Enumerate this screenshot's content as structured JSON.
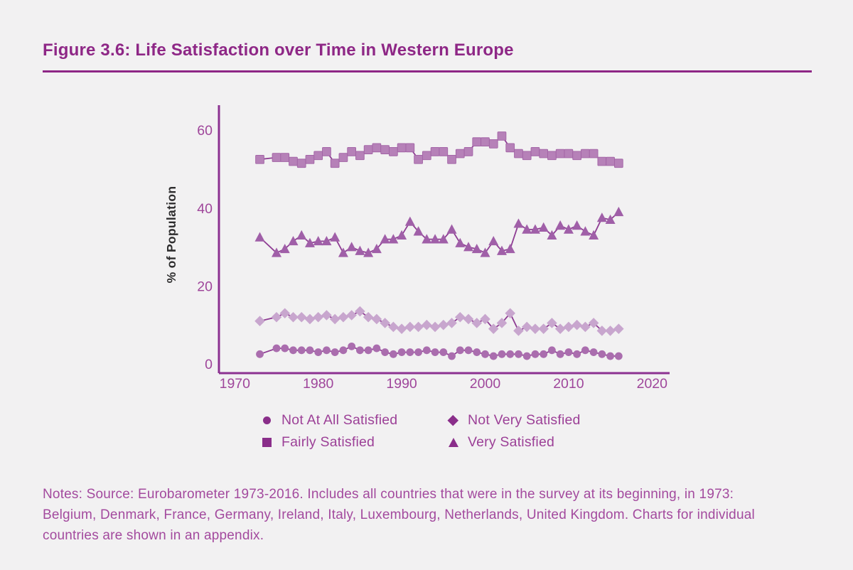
{
  "page": {
    "background": "#f2f1f2"
  },
  "figure": {
    "title": "Figure 3.6: Life Satisfaction over Time in Western Europe",
    "notes_lines": [
      "Notes: Source: Eurobarometer 1973-2016. Includes all countries that were in the survey at its beginning, in 1973:",
      "Belgium, Denmark, France, Germany, Ireland, Italy, Luxembourg, Netherlands, United Kingdom. Charts for individual",
      "countries are shown in an appendix."
    ]
  },
  "colors": {
    "title": "#8e2786",
    "rule": "#8e2786",
    "axis_line": "#8c3191",
    "tick_text": "#9f469b",
    "ylabel_text": "#2e2d2e",
    "legend_text": "#9c4097",
    "legend_marker": "#8a2e8a",
    "notes_text": "#a34a9e",
    "series_line": "#8e3c93"
  },
  "chart_data": {
    "type": "line",
    "title": "Figure 3.6: Life Satisfaction over Time in Western Europe",
    "xlabel": "",
    "ylabel": "% of Population",
    "xlim": [
      1968,
      2022
    ],
    "ylim": [
      0,
      66
    ],
    "x_ticks": [
      1970,
      1980,
      1990,
      2000,
      2010,
      2020
    ],
    "y_ticks": [
      0,
      20,
      40,
      60
    ],
    "grid": false,
    "legend_position": "below-center",
    "x": [
      1973,
      1975,
      1976,
      1977,
      1978,
      1979,
      1980,
      1981,
      1982,
      1983,
      1984,
      1985,
      1986,
      1987,
      1988,
      1989,
      1990,
      1991,
      1992,
      1993,
      1994,
      1995,
      1996,
      1997,
      1998,
      1999,
      2000,
      2001,
      2002,
      2003,
      2004,
      2005,
      2006,
      2007,
      2008,
      2009,
      2010,
      2011,
      2012,
      2013,
      2014,
      2015,
      2016
    ],
    "series": [
      {
        "name": "Not At All Satisfied",
        "marker": "circle",
        "color": "#aa6dae",
        "values": [
          2.5,
          4,
          4,
          3.5,
          3.5,
          3.5,
          3,
          3.5,
          3,
          3.5,
          4.5,
          3.5,
          3.5,
          4,
          3,
          2.5,
          3,
          3,
          3,
          3.5,
          3,
          3,
          2,
          3.5,
          3.5,
          3,
          2.5,
          2,
          2.5,
          2.5,
          2.5,
          2,
          2.5,
          2.5,
          3.5,
          2.5,
          3,
          2.5,
          3.5,
          3,
          2.5,
          2,
          2
        ]
      },
      {
        "name": "Not Very Satisfied",
        "marker": "diamond",
        "color": "#c8a6ce",
        "values": [
          11,
          12,
          13,
          12,
          12,
          11.5,
          12,
          12.5,
          11.5,
          12,
          12.5,
          13.5,
          12,
          11.5,
          10.5,
          9.5,
          9,
          9.5,
          9.5,
          10,
          9.5,
          10,
          10.5,
          12,
          11.5,
          10.5,
          11.5,
          9,
          10.5,
          13,
          8.5,
          9.5,
          9,
          9,
          10.5,
          9,
          9.5,
          10,
          9.5,
          10.5,
          8.5,
          8.5,
          9
        ]
      },
      {
        "name": "Fairly Satisfied",
        "marker": "square",
        "color": "#b681b8",
        "values": [
          52.5,
          53,
          53,
          52,
          51.5,
          52.5,
          53.5,
          54.5,
          51.5,
          53,
          54.5,
          53.5,
          55,
          55.5,
          55,
          54.5,
          55.5,
          55.5,
          52.5,
          53.5,
          54.5,
          54.5,
          52.5,
          54,
          54.5,
          57,
          57,
          56.5,
          58.5,
          55.5,
          54,
          53.5,
          54.5,
          54,
          53.5,
          54,
          54,
          53.5,
          54,
          54,
          52,
          52,
          51.5
        ]
      },
      {
        "name": "Very Satisfied",
        "marker": "triangle",
        "color": "#a05fa8",
        "values": [
          32.5,
          28.5,
          29.5,
          31.5,
          33,
          31,
          31.5,
          31.5,
          32.5,
          28.5,
          30,
          29,
          28.5,
          29.5,
          32,
          32,
          33,
          36.5,
          34,
          32,
          32,
          32,
          34.5,
          31,
          30,
          29.5,
          28.5,
          31.5,
          29,
          29.5,
          36,
          34.5,
          34.5,
          35,
          33,
          35.5,
          34.5,
          35.5,
          34,
          33,
          37.5,
          37,
          39
        ]
      }
    ]
  },
  "legend": {
    "items": [
      {
        "marker": "circle",
        "label": "Not At All Satisfied"
      },
      {
        "marker": "diamond",
        "label": "Not Very Satisfied"
      },
      {
        "marker": "square",
        "label": "Fairly Satisfied"
      },
      {
        "marker": "triangle",
        "label": "Very Satisfied"
      }
    ]
  }
}
